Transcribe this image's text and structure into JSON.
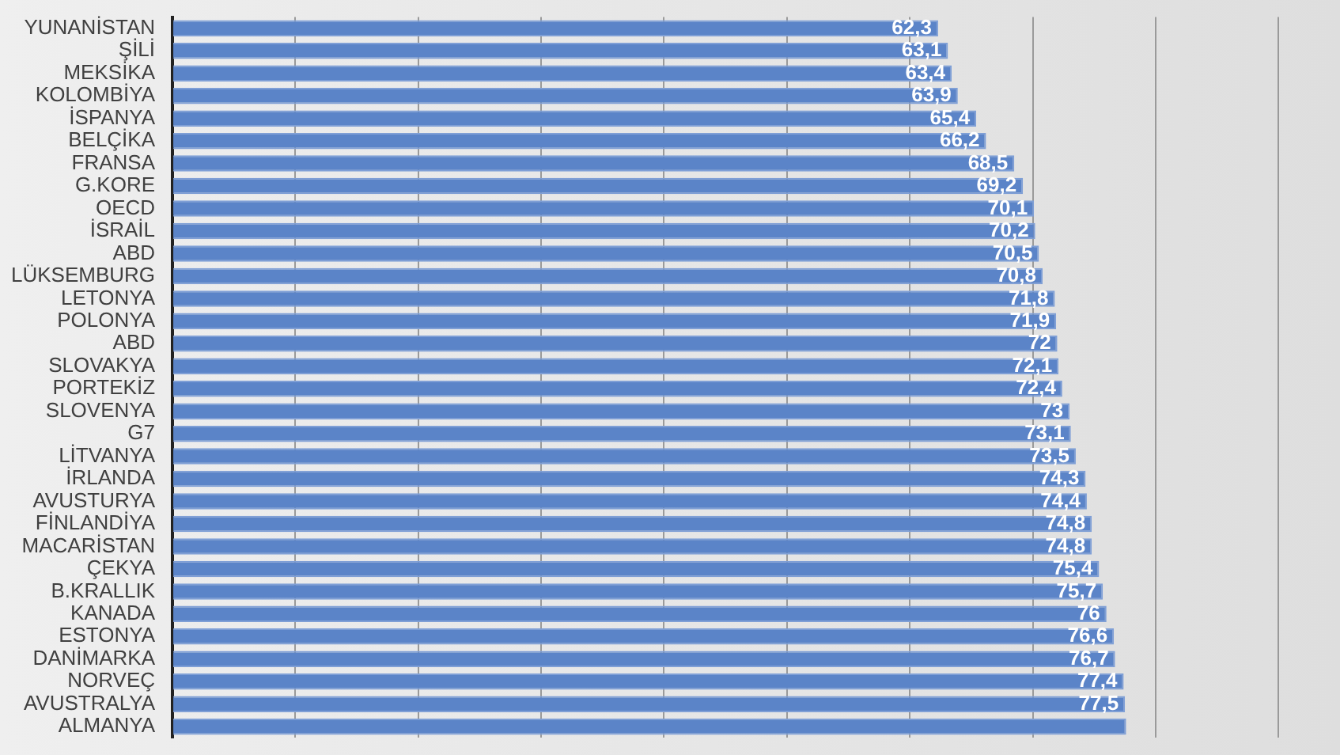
{
  "chart_data": {
    "type": "bar",
    "orientation": "horizontal",
    "categories": [
      "YUNANİSTAN",
      "ŞİLİ",
      "MEKSİKA",
      "KOLOMBİYA",
      "İSPANYA",
      "BELÇİKA",
      "FRANSA",
      "G.KORE",
      "OECD",
      "İSRAİL",
      "ABD",
      "LÜKSEMBURG",
      "LETONYA",
      "POLONYA",
      "ABD",
      "SLOVAKYA",
      "PORTEKİZ",
      "SLOVENYA",
      "G7",
      "LİTVANYA",
      "İRLANDA",
      "AVUSTURYA",
      "FİNLANDİYA",
      "MACARİSTAN",
      "ÇEKYA",
      "B.KRALLIK",
      "KANADA",
      "ESTONYA",
      "DANİMARKA",
      "NORVEÇ",
      "AVUSTRALYA",
      "ALMANYA"
    ],
    "values": [
      62.3,
      63.1,
      63.4,
      63.9,
      65.4,
      66.2,
      68.5,
      69.2,
      70.1,
      70.2,
      70.5,
      70.8,
      71.8,
      71.9,
      72,
      72.1,
      72.4,
      73,
      73.1,
      73.5,
      74.3,
      74.4,
      74.8,
      74.8,
      75.4,
      75.7,
      76,
      76.6,
      76.7,
      77.4,
      77.5,
      77.6
    ],
    "value_labels": [
      "62,3",
      "63,1",
      "63,4",
      "63,9",
      "65,4",
      "66,2",
      "68,5",
      "69,2",
      "70,1",
      "70,2",
      "70,5",
      "70,8",
      "71,8",
      "71,9",
      "72",
      "72,1",
      "72,4",
      "73",
      "73,1",
      "73,5",
      "74,3",
      "74,4",
      "74,8",
      "74,8",
      "75,4",
      "75,7",
      "76",
      "76,6",
      "76,7",
      "77,4",
      "77,5",
      null
    ],
    "color": "#5b84c8",
    "xlim": [
      0,
      95
    ],
    "xticks": [
      {
        "value": 0,
        "label": null
      },
      {
        "value": 10,
        "label": null
      },
      {
        "value": 20,
        "label": null
      },
      {
        "value": 30,
        "label": null
      },
      {
        "value": 40,
        "label": null
      },
      {
        "value": 50,
        "label": null
      },
      {
        "value": 60,
        "label": null
      },
      {
        "value": 70,
        "label": null
      },
      {
        "value": 80,
        "label": null
      },
      {
        "value": 90,
        "label": null
      }
    ],
    "tick_labels": "y",
    "grid": "x"
  }
}
